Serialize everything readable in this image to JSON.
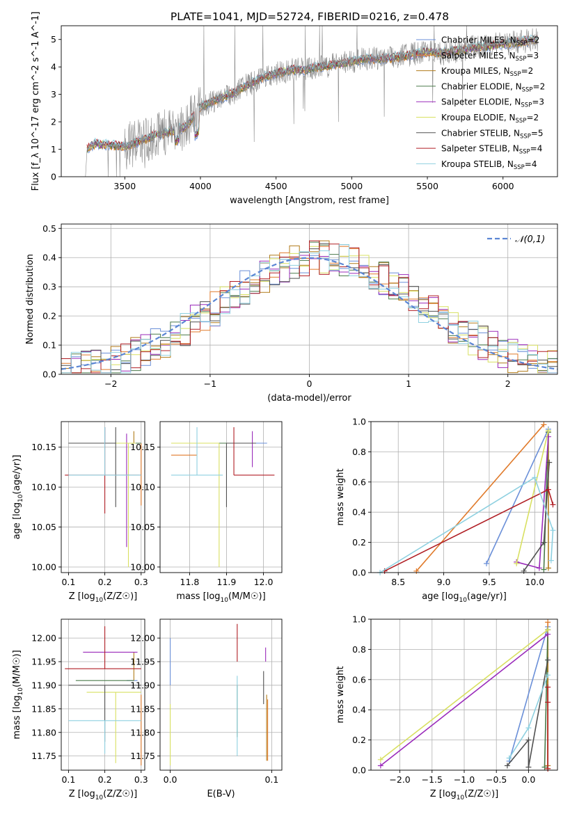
{
  "figure": {
    "title": "PLATE=1041, MJD=52724, FIBERID=0216, z=0.478"
  },
  "model_colors": [
    "#6a8fd8",
    "#e07a2a",
    "#b07a18",
    "#4a7a4a",
    "#9a2aba",
    "#d8e060",
    "#505050",
    "#b01e24",
    "#8ed0e0"
  ],
  "chart_data": [
    {
      "id": "spectrum",
      "type": "line",
      "xlabel": "wavelength [Angstrom, rest frame]",
      "ylabel": "Flux [f_λ 10^-17 erg cm^-2 s^-1 A^-1]",
      "xlim": [
        3080,
        6360
      ],
      "ylim": [
        0,
        5.5
      ],
      "xticks": [
        3500,
        4000,
        4500,
        5000,
        5500,
        6000
      ],
      "yticks": [
        0,
        1,
        2,
        3,
        4,
        5
      ],
      "grid": false,
      "legend_position": "upper-right",
      "legend": [
        {
          "base": "Chabrier MILES, N",
          "sub": "SSP",
          "tail": "=2"
        },
        {
          "base": "Salpeter MILES, N",
          "sub": "SSP",
          "tail": "=3"
        },
        {
          "base": "Kroupa MILES, N",
          "sub": "SSP",
          "tail": "=2"
        },
        {
          "base": "Chabrier ELODIE, N",
          "sub": "SSP",
          "tail": "=2"
        },
        {
          "base": "Salpeter ELODIE, N",
          "sub": "SSP",
          "tail": "=3"
        },
        {
          "base": "Kroupa ELODIE, N",
          "sub": "SSP",
          "tail": "=2"
        },
        {
          "base": "Chabrier STELIB, N",
          "sub": "SSP",
          "tail": "=5"
        },
        {
          "base": "Salpeter STELIB, N",
          "sub": "SSP",
          "tail": "=4"
        },
        {
          "base": "Kroupa STELIB, N",
          "sub": "SSP",
          "tail": "=4"
        }
      ],
      "continuum": [
        [
          3240,
          0.0
        ],
        [
          3250,
          1.0
        ],
        [
          3300,
          1.2
        ],
        [
          3400,
          1.15
        ],
        [
          3500,
          1.1
        ],
        [
          3600,
          1.3
        ],
        [
          3700,
          1.5
        ],
        [
          3800,
          1.65
        ],
        [
          3900,
          1.8
        ],
        [
          4000,
          2.55
        ],
        [
          4100,
          2.8
        ],
        [
          4200,
          3.0
        ],
        [
          4300,
          3.3
        ],
        [
          4400,
          3.6
        ],
        [
          4500,
          3.75
        ],
        [
          4600,
          3.9
        ],
        [
          4700,
          3.9
        ],
        [
          4800,
          4.0
        ],
        [
          4900,
          4.1
        ],
        [
          5000,
          4.2
        ],
        [
          5100,
          4.3
        ],
        [
          5200,
          4.3
        ],
        [
          5300,
          4.35
        ],
        [
          5400,
          4.45
        ],
        [
          5500,
          4.55
        ],
        [
          5600,
          4.5
        ],
        [
          5700,
          4.6
        ],
        [
          5800,
          4.7
        ],
        [
          5900,
          4.75
        ],
        [
          6000,
          4.85
        ],
        [
          6100,
          4.9
        ],
        [
          6230,
          5.0
        ]
      ]
    },
    {
      "id": "residuals",
      "type": "histogram",
      "xlabel": "(data-model)/error",
      "ylabel": "Normed distribution",
      "xlim": [
        -2.5,
        2.5
      ],
      "ylim": [
        0,
        0.515
      ],
      "xticks": [
        -2,
        -1,
        0,
        1,
        2
      ],
      "yticks": [
        0.0,
        0.1,
        0.2,
        0.3,
        0.4,
        0.5
      ],
      "grid": true,
      "legend_position": "upper-right",
      "legend": [
        {
          "label": "𝒩(0,1)"
        }
      ]
    },
    {
      "id": "age-vs-Z",
      "type": "errorbar",
      "xlabel_base": "Z [log",
      "xlabel_sub": "10",
      "xlabel_tail": "(Z/Z☉)]",
      "ylabel_base": "age  [log",
      "ylabel_sub": "10",
      "ylabel_tail": "(age/yr)]",
      "xlim": [
        0.08,
        0.31
      ],
      "ylim": [
        9.993,
        10.182
      ],
      "xticks": [
        0.1,
        0.2,
        0.3
      ],
      "yticks": [
        10.0,
        10.05,
        10.1,
        10.15
      ],
      "grid": true,
      "points": [
        {
          "x": 0.2,
          "y": 10.155,
          "xerr": [
            0.06,
            0.1
          ],
          "yerr": [
            0.0,
            0.02
          ]
        },
        {
          "x": 0.3,
          "y": 10.155,
          "xerr": [
            0.1,
            0.0
          ],
          "yerr": [
            0.078,
            0.0
          ]
        },
        {
          "x": 0.28,
          "y": 10.155,
          "xerr": [
            0.14,
            0.0
          ],
          "yerr": [
            0.0,
            0.015
          ]
        },
        {
          "x": 0.2,
          "y": 10.155,
          "xerr": [
            0.1,
            0.1
          ],
          "yerr": [
            0.0,
            0.0
          ]
        },
        {
          "x": 0.26,
          "y": 10.155,
          "xerr": [
            0.06,
            0.0
          ],
          "yerr": [
            0.13,
            0.012
          ]
        },
        {
          "x": 0.265,
          "y": 10.155,
          "xerr": [
            0.06,
            0.02
          ],
          "yerr": [
            0.155,
            0.0
          ]
        },
        {
          "x": 0.23,
          "y": 10.155,
          "xerr": [
            0.13,
            0.0
          ],
          "yerr": [
            0.08,
            0.02
          ]
        },
        {
          "x": 0.2,
          "y": 10.115,
          "xerr": [
            0.11,
            0.1
          ],
          "yerr": [
            0.048,
            0.06
          ]
        },
        {
          "x": 0.2,
          "y": 10.115,
          "xerr": [
            0.1,
            0.1
          ],
          "yerr": [
            0.0,
            0.06
          ]
        }
      ]
    },
    {
      "id": "age-vs-mass",
      "type": "errorbar",
      "xlabel_base": "mass [log",
      "xlabel_sub": "10",
      "xlabel_tail": "(M/M☉)]",
      "xlim": [
        11.72,
        12.05
      ],
      "ylim": [
        9.993,
        10.182
      ],
      "xticks": [
        11.8,
        11.9,
        12.0
      ],
      "yticks": [
        10.0,
        10.05,
        10.1,
        10.15
      ],
      "grid": true,
      "points": [
        {
          "x": 11.92,
          "y": 10.155,
          "xerr": [
            0.0,
            0.09
          ],
          "yerr": [
            0.0,
            0.0
          ]
        },
        {
          "x": 11.75,
          "y": 10.14,
          "xerr": [
            0.0,
            0.07
          ],
          "yerr": [
            0.0,
            0.0
          ]
        },
        {
          "x": 11.91,
          "y": 10.155,
          "xerr": [
            0.0,
            0.05
          ],
          "yerr": [
            0.0,
            0.0
          ]
        },
        {
          "x": 11.91,
          "y": 10.155,
          "xerr": [
            0.05,
            0.03
          ],
          "yerr": [
            0.0,
            0.0
          ]
        },
        {
          "x": 11.97,
          "y": 10.155,
          "xerr": [
            0.06,
            0.0
          ],
          "yerr": [
            0.03,
            0.015
          ]
        },
        {
          "x": 11.88,
          "y": 10.155,
          "xerr": [
            0.13,
            0.0
          ],
          "yerr": [
            0.155,
            0.0
          ]
        },
        {
          "x": 11.9,
          "y": 10.155,
          "xerr": [
            0.0,
            0.08
          ],
          "yerr": [
            0.08,
            0.0
          ]
        },
        {
          "x": 11.92,
          "y": 10.115,
          "xerr": [
            0.0,
            0.11
          ],
          "yerr": [
            0.0,
            0.06
          ]
        },
        {
          "x": 11.82,
          "y": 10.115,
          "xerr": [
            0.07,
            0.07
          ],
          "yerr": [
            0.0,
            0.06
          ]
        }
      ]
    },
    {
      "id": "massweight-vs-age",
      "type": "line",
      "xlabel_base": "age  [log",
      "xlabel_sub": "10",
      "xlabel_tail": "(age/yr)]",
      "ylabel": "mass weight",
      "xlim": [
        8.2,
        10.25
      ],
      "ylim": [
        0,
        1.0
      ],
      "xticks": [
        8.5,
        9.0,
        9.5,
        10.0
      ],
      "yticks": [
        0.0,
        0.2,
        0.4,
        0.6,
        0.8,
        1.0
      ],
      "grid": true,
      "series": [
        {
          "points": [
            [
              9.47,
              0.06
            ],
            [
              10.15,
              0.95
            ]
          ]
        },
        {
          "points": [
            [
              8.7,
              0.01
            ],
            [
              10.1,
              0.98
            ]
          ]
        },
        {
          "points": [
            [
              10.15,
              0.03
            ],
            [
              10.15,
              0.93
            ]
          ]
        },
        {
          "points": [
            [
              10.1,
              0.02
            ],
            [
              10.15,
              0.93
            ]
          ]
        },
        {
          "points": [
            [
              9.8,
              0.07
            ],
            [
              10.05,
              0.03
            ],
            [
              10.15,
              0.9
            ]
          ]
        },
        {
          "points": [
            [
              9.8,
              0.06
            ],
            [
              10.15,
              0.94
            ]
          ]
        },
        {
          "points": [
            [
              9.88,
              0.01
            ],
            [
              10.1,
              0.2
            ],
            [
              10.16,
              0.73
            ]
          ]
        },
        {
          "points": [
            [
              8.35,
              0.01
            ],
            [
              10.15,
              0.55
            ],
            [
              10.2,
              0.45
            ]
          ]
        },
        {
          "points": [
            [
              8.3,
              0.0
            ],
            [
              10.0,
              0.63
            ],
            [
              10.2,
              0.28
            ],
            [
              10.18,
              0.08
            ]
          ]
        }
      ]
    },
    {
      "id": "mass-vs-Z",
      "type": "errorbar",
      "xlabel_base": "Z [log",
      "xlabel_sub": "10",
      "xlabel_tail": "(Z/Z☉)]",
      "ylabel_base": "mass [log",
      "ylabel_sub": "10",
      "ylabel_tail": "(M/M☉)]",
      "xlim": [
        0.08,
        0.31
      ],
      "ylim": [
        11.72,
        12.04
      ],
      "xticks": [
        0.1,
        0.2,
        0.3
      ],
      "yticks": [
        11.75,
        11.8,
        11.85,
        11.9,
        11.95,
        12.0
      ],
      "grid": true,
      "points": [
        {
          "x": 0.26,
          "y": 11.91,
          "xerr": [
            0.0,
            0.03
          ],
          "yerr": [
            0.0,
            0.0
          ]
        },
        {
          "x": 0.3,
          "y": 11.83,
          "xerr": [
            0.0,
            0.0
          ],
          "yerr": [
            0.1,
            0.05
          ]
        },
        {
          "x": 0.28,
          "y": 11.91,
          "xerr": [
            0.0,
            0.0
          ],
          "yerr": [
            0.0,
            0.06
          ]
        },
        {
          "x": 0.2,
          "y": 11.91,
          "xerr": [
            0.08,
            0.08
          ],
          "yerr": [
            0.0,
            0.0
          ]
        },
        {
          "x": 0.21,
          "y": 11.97,
          "xerr": [
            0.07,
            0.08
          ],
          "yerr": [
            0.0,
            0.0
          ]
        },
        {
          "x": 0.23,
          "y": 11.885,
          "xerr": [
            0.08,
            0.07
          ],
          "yerr": [
            0.15,
            0.0
          ]
        },
        {
          "x": 0.2,
          "y": 11.9,
          "xerr": [
            0.1,
            0.1
          ],
          "yerr": [
            0.12,
            0.0
          ]
        },
        {
          "x": 0.2,
          "y": 11.935,
          "xerr": [
            0.11,
            0.1
          ],
          "yerr": [
            0.0,
            0.09
          ]
        },
        {
          "x": 0.2,
          "y": 11.825,
          "xerr": [
            0.1,
            0.1
          ],
          "yerr": [
            0.07,
            0.0
          ]
        }
      ]
    },
    {
      "id": "mass-vs-EBV",
      "type": "errorbar",
      "xlabel": "E(B-V)",
      "xlim": [
        -0.01,
        0.11
      ],
      "ylim": [
        11.72,
        12.04
      ],
      "xticks": [
        0.0,
        0.1
      ],
      "yticks": [
        11.75,
        11.8,
        11.85,
        11.9,
        11.95,
        12.0
      ],
      "grid": true,
      "points": [
        {
          "x": 0.0,
          "y": 11.95,
          "xerr": [
            0.0,
            0.0
          ],
          "yerr": [
            0.05,
            0.05
          ]
        },
        {
          "x": 0.096,
          "y": 11.82,
          "xerr": [
            0.0,
            0.0
          ],
          "yerr": [
            0.08,
            0.05
          ]
        },
        {
          "x": 0.095,
          "y": 11.8,
          "xerr": [
            0.0,
            0.0
          ],
          "yerr": [
            0.06,
            0.08
          ]
        },
        {
          "x": 0.066,
          "y": 11.85,
          "xerr": [
            0.0,
            0.0
          ],
          "yerr": [
            0.06,
            0.05
          ]
        },
        {
          "x": 0.094,
          "y": 11.95,
          "xerr": [
            0.0,
            0.0
          ],
          "yerr": [
            0.0,
            0.03
          ]
        },
        {
          "x": 0.0,
          "y": 11.86,
          "xerr": [
            0.0,
            0.0
          ],
          "yerr": [
            0.13,
            0.0
          ]
        },
        {
          "x": 0.092,
          "y": 11.86,
          "xerr": [
            0.0,
            0.0
          ],
          "yerr": [
            0.0,
            0.07
          ]
        },
        {
          "x": 0.066,
          "y": 11.95,
          "xerr": [
            0.0,
            0.0
          ],
          "yerr": [
            0.0,
            0.08
          ]
        },
        {
          "x": 0.066,
          "y": 11.82,
          "xerr": [
            0.0,
            0.0
          ],
          "yerr": [
            0.07,
            0.1
          ]
        }
      ]
    },
    {
      "id": "massweight-vs-Z",
      "type": "line",
      "xlabel_base": "Z [log",
      "xlabel_sub": "10",
      "xlabel_tail": "(Z/Z☉)]",
      "ylabel": "mass weight",
      "xlim": [
        -2.45,
        0.45
      ],
      "ylim": [
        0,
        1.0
      ],
      "xticks": [
        -2.0,
        -1.5,
        -1.0,
        -0.5,
        0.0
      ],
      "yticks": [
        0.0,
        0.2,
        0.4,
        0.6,
        0.8,
        1.0
      ],
      "grid": true,
      "series": [
        {
          "points": [
            [
              -0.3,
              0.06
            ],
            [
              0.3,
              0.95
            ]
          ]
        },
        {
          "points": [
            [
              0.3,
              0.01
            ],
            [
              0.3,
              0.98
            ]
          ]
        },
        {
          "points": [
            [
              0.3,
              0.03
            ],
            [
              0.3,
              0.93
            ]
          ]
        },
        {
          "points": [
            [
              0.25,
              0.02
            ],
            [
              0.3,
              0.93
            ]
          ]
        },
        {
          "points": [
            [
              -2.3,
              0.03
            ],
            [
              0.3,
              0.9
            ]
          ]
        },
        {
          "points": [
            [
              -2.3,
              0.07
            ],
            [
              0.3,
              0.93
            ]
          ]
        },
        {
          "points": [
            [
              -0.33,
              0.03
            ],
            [
              0.0,
              0.2
            ],
            [
              0.0,
              0.02
            ],
            [
              0.3,
              0.73
            ]
          ]
        },
        {
          "points": [
            [
              0.3,
              0.01
            ],
            [
              0.3,
              0.55
            ],
            [
              0.3,
              0.45
            ]
          ]
        },
        {
          "points": [
            [
              -0.3,
              0.08
            ],
            [
              0.0,
              0.28
            ],
            [
              0.3,
              0.63
            ]
          ]
        }
      ]
    }
  ]
}
